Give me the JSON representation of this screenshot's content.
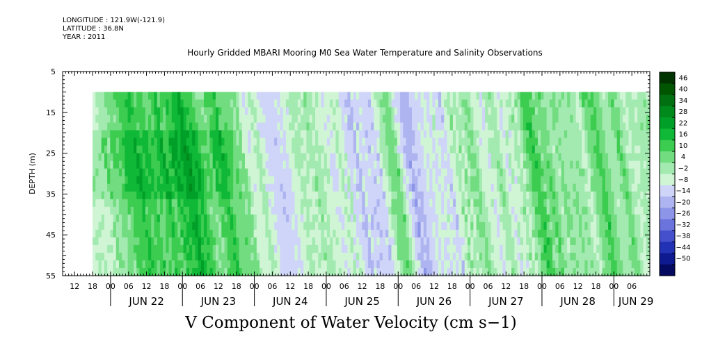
{
  "header": {
    "longitude": "LONGITUDE : 121.9W(-121.9)",
    "latitude": "LATITUDE : 36.8N",
    "year": "YEAR : 2011",
    "title": "Hourly Gridded MBARI Mooring M0 Sea Water Temperature and Salinity Observations"
  },
  "footer": {
    "title": "V Component of Water Velocity (cm s−1)"
  },
  "chart_data": {
    "type": "heatmap",
    "title": "Hourly Gridded MBARI Mooring M0 Sea Water Temperature and Salinity Observations",
    "variable": "V Component of Water Velocity (cm s−1)",
    "ylabel": "DEPTH (m)",
    "y_axis": {
      "ticks": [
        "5",
        "15",
        "25",
        "35",
        "45",
        "55"
      ],
      "ylim": [
        5,
        55
      ],
      "inverted": true
    },
    "data_depth_range": [
      10,
      55
    ],
    "x_axis": {
      "hour_labels": [
        "12",
        "18",
        "00",
        "06",
        "12",
        "18",
        "00",
        "06",
        "12",
        "18",
        "00",
        "06",
        "12",
        "18",
        "00",
        "06",
        "12",
        "18",
        "00",
        "06",
        "12",
        "18",
        "00",
        "06",
        "12",
        "18",
        "00",
        "06",
        "12",
        "18",
        "00",
        "06"
      ],
      "day_labels": [
        "JUN 22",
        "JUN 23",
        "JUN 24",
        "JUN 25",
        "JUN 26",
        "JUN 27",
        "JUN 28",
        "JUN 29"
      ],
      "xlim": [
        "2011-06-21T08:00",
        "2011-06-29T12:00"
      ],
      "data_start": "2011-06-21T18:00"
    },
    "colorbar": {
      "levels": [
        "46",
        "40",
        "34",
        "28",
        "22",
        "16",
        "10",
        "4",
        "−2",
        "−8",
        "−14",
        "−20",
        "−26",
        "−32",
        "−38",
        "−44",
        "−50"
      ],
      "min": -50,
      "max": 52,
      "colors_positive_to_negative": [
        "#003300",
        "#005500",
        "#007010",
        "#008a1c",
        "#00a028",
        "#10b838",
        "#3ccc50",
        "#72dc80",
        "#a2eab0",
        "#cff5d5",
        "#cfd5f8",
        "#aeb4f0",
        "#8d95e8",
        "#6a74dc",
        "#4450cc",
        "#2232b4",
        "#0e1a90",
        "#050a60"
      ]
    },
    "field_description": "Vertical bands of alternating weak positive (light green, ~0 to +16) and weak negative (light blue/violet, ~0 to -14) velocity spanning 10-55 m depth; strongest positive (green, ~+16 to +22) near JUN 22 and JUN 24, dominant negative bands JUN 25-27."
  }
}
